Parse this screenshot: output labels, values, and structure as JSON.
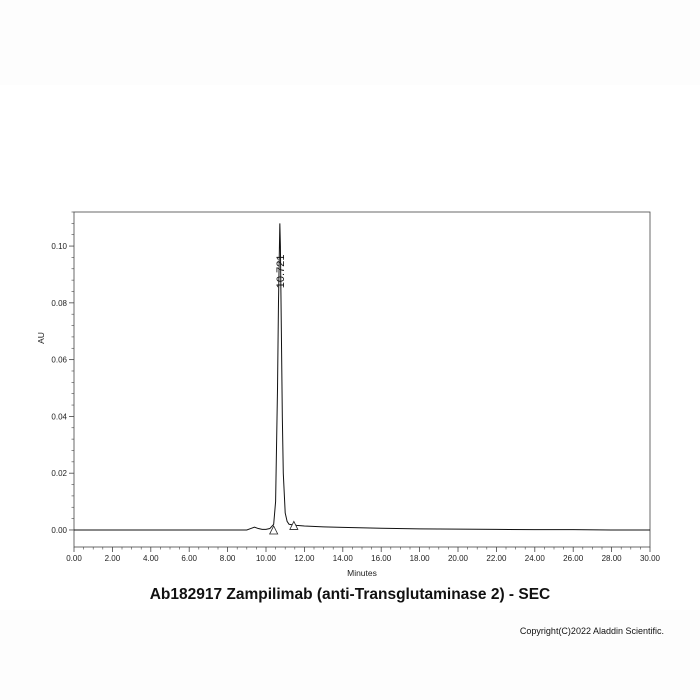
{
  "chart_data": {
    "type": "line",
    "title": "Ab182917 Zampilimab (anti-Transglutaminase 2) - SEC",
    "xlabel": "Minutes",
    "ylabel": "AU",
    "xlim": [
      0,
      30
    ],
    "ylim": [
      -0.006,
      0.112
    ],
    "x_ticks": [
      "0.00",
      "2.00",
      "4.00",
      "6.00",
      "8.00",
      "10.00",
      "12.00",
      "14.00",
      "16.00",
      "18.00",
      "20.00",
      "22.00",
      "24.00",
      "26.00",
      "28.00",
      "30.00"
    ],
    "y_ticks": [
      "0.00",
      "0.02",
      "0.04",
      "0.06",
      "0.08",
      "0.10"
    ],
    "grid": false,
    "series": [
      {
        "x": [
          0,
          2,
          4,
          6,
          8,
          9,
          9.2,
          9.4,
          9.6,
          9.8,
          10.0,
          10.2,
          10.4,
          10.5,
          10.6,
          10.65,
          10.7,
          10.721,
          10.75,
          10.8,
          10.85,
          10.9,
          11.0,
          11.1,
          11.2,
          11.4,
          11.6,
          12,
          13,
          14,
          16,
          18,
          20,
          22,
          24,
          26,
          28,
          30
        ],
        "y": [
          0,
          0,
          0,
          0,
          0,
          0,
          0.0005,
          0.001,
          0.0005,
          0.0002,
          0.0002,
          0.0005,
          0.002,
          0.01,
          0.05,
          0.08,
          0.1,
          0.108,
          0.1,
          0.07,
          0.04,
          0.02,
          0.006,
          0.003,
          0.002,
          0.0018,
          0.0016,
          0.0014,
          0.0011,
          0.0009,
          0.0006,
          0.0004,
          0.0003,
          0.0002,
          0.0001,
          0.0001,
          0,
          0
        ]
      }
    ],
    "annotations": [
      {
        "text": "10.721",
        "x": 10.721,
        "y": 0.108
      }
    ],
    "markers": [
      {
        "x": 10.4,
        "y": 0.0
      },
      {
        "x": 11.45,
        "y": 0.0016
      }
    ]
  },
  "copyright": "Copyright(C)2022 Aladdin Scientific."
}
